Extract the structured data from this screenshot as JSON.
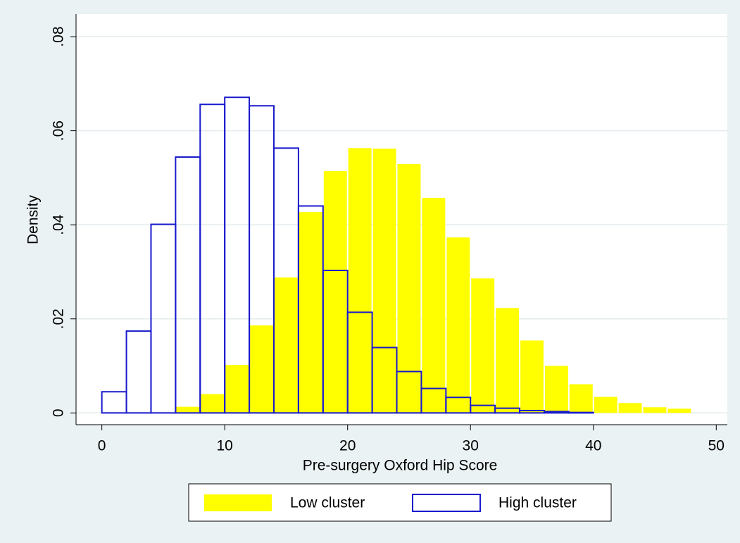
{
  "chart_data": {
    "type": "histogram",
    "xlabel": "Pre-surgery Oxford Hip Score",
    "ylabel": "Density",
    "bins": [
      0,
      2,
      4,
      6,
      8,
      10,
      12,
      14,
      16,
      18,
      20,
      22,
      24,
      26,
      28,
      30,
      32,
      34,
      36,
      38,
      40,
      42,
      44,
      46,
      48
    ],
    "series": [
      {
        "name": "Low cluster",
        "color": "#ffff00",
        "style": "filled",
        "values": [
          0,
          0,
          0,
          0.0013,
          0.004,
          0.0102,
          0.0186,
          0.0288,
          0.0427,
          0.0514,
          0.0563,
          0.0562,
          0.0529,
          0.0457,
          0.0373,
          0.0286,
          0.0223,
          0.0154,
          0.01,
          0.0061,
          0.0034,
          0.0021,
          0.0012,
          0.0009
        ]
      },
      {
        "name": "High cluster",
        "color": "#1a1acc",
        "style": "outline",
        "values": [
          0.0045,
          0.0174,
          0.0401,
          0.0544,
          0.0656,
          0.0671,
          0.0653,
          0.0563,
          0.044,
          0.0303,
          0.0214,
          0.0139,
          0.0088,
          0.0052,
          0.0033,
          0.0016,
          0.001,
          0.0005,
          0.0003,
          0.0001,
          0,
          0,
          0,
          0
        ]
      }
    ],
    "xlim": [
      -2.1,
      50.9
    ],
    "ylim": [
      -0.0025,
      0.0848
    ],
    "xticks": [
      0,
      10,
      20,
      30,
      40,
      50
    ],
    "yticks": [
      0,
      {
        "value": 0.02,
        "label": ".02"
      },
      {
        "value": 0.04,
        "label": ".04"
      },
      {
        "value": 0.06,
        "label": ".06"
      },
      {
        "value": 0.08,
        "label": ".08"
      }
    ],
    "grid": true,
    "legend": "bottom"
  }
}
